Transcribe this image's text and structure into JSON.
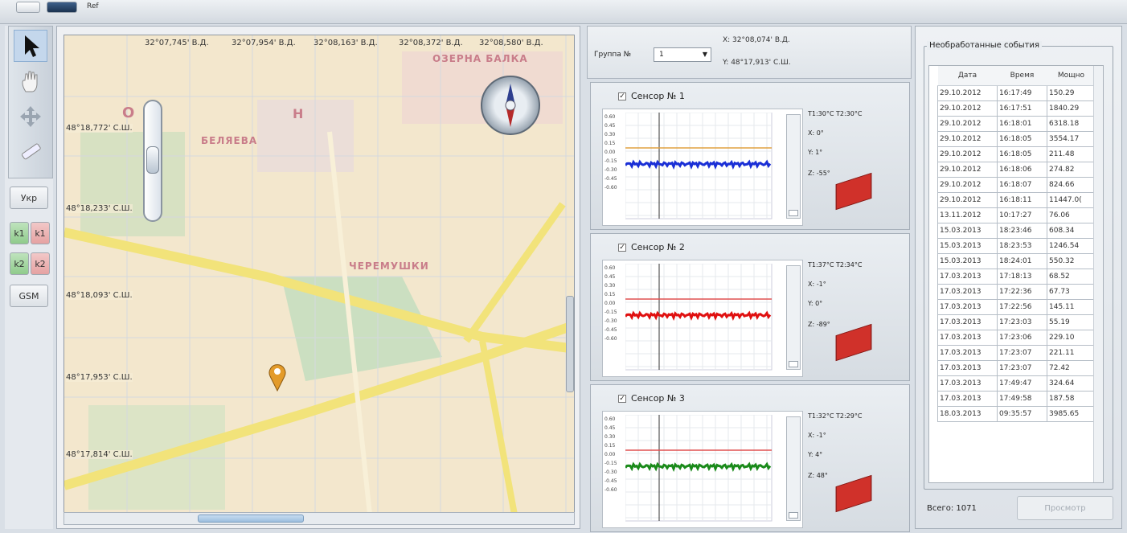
{
  "topbar": {
    "label": "Ref"
  },
  "toolbar": {
    "tools": [
      "pointer-icon",
      "hand-icon",
      "move-icon",
      "ruler-icon"
    ],
    "buttons": {
      "ukr": "Укр",
      "k1a": "k1",
      "k1b": "k1",
      "k2a": "k2",
      "k2b": "k2",
      "gsm": "GSM"
    }
  },
  "map": {
    "lon_labels": [
      "32°07,745' В.Д.",
      "32°07,954' В.Д.",
      "32°08,163' В.Д.",
      "32°08,372' В.Д.",
      "32°08,580' В.Д."
    ],
    "lat_labels": [
      "48°18,772' С.Ш.",
      "48°18,233' С.Ш.",
      "48°18,093' С.Ш.",
      "48°17,953' С.Ш.",
      "48°17,814' С.Ш."
    ],
    "districts": {
      "ozerna": "ОЗЕРНА БАЛКА",
      "o": "О",
      "n": "Н",
      "bilyaiva": "БЕЛЯЕВА",
      "cheremushki": "ЧЕРЕМУШКИ"
    }
  },
  "group": {
    "label": "Группа №",
    "value": "1",
    "x": "X:   32°08,074' В.Д.",
    "y": "Y:   48°17,913' С.Ш."
  },
  "sensors": [
    {
      "title": "Сенсор № 1",
      "temps": "T1:30°C  T2:30°C",
      "x": "X:  0°",
      "y": "Y:  1°",
      "z": "Z:  -55°",
      "color": "#1a2fd6",
      "ref_color": "#e0a040"
    },
    {
      "title": "Сенсор № 2",
      "temps": "T1:37°C  T2:34°C",
      "x": "X:  -1°",
      "y": "Y:  0°",
      "z": "Z:  -89°",
      "color": "#e01010",
      "ref_color": "#e05050"
    },
    {
      "title": "Сенсор № 3",
      "temps": "T1:32°C  T2:29°C",
      "x": "X:  -1°",
      "y": "Y:  4°",
      "z": "Z:  48°",
      "color": "#1a8a1a",
      "ref_color": "#e05050"
    }
  ],
  "events": {
    "legend": "Необработанные события",
    "columns": [
      "Дата",
      "Время",
      "Мощно"
    ],
    "rows": [
      [
        "29.10.2012",
        "16:17:49",
        "150.29"
      ],
      [
        "29.10.2012",
        "16:17:51",
        "1840.29"
      ],
      [
        "29.10.2012",
        "16:18:01",
        "6318.18"
      ],
      [
        "29.10.2012",
        "16:18:05",
        "3554.17"
      ],
      [
        "29.10.2012",
        "16:18:05",
        "211.48"
      ],
      [
        "29.10.2012",
        "16:18:06",
        "274.82"
      ],
      [
        "29.10.2012",
        "16:18:07",
        "824.66"
      ],
      [
        "29.10.2012",
        "16:18:11",
        "11447.0("
      ],
      [
        "13.11.2012",
        "10:17:27",
        "76.06"
      ],
      [
        "15.03.2013",
        "18:23:46",
        "608.34"
      ],
      [
        "15.03.2013",
        "18:23:53",
        "1246.54"
      ],
      [
        "15.03.2013",
        "18:24:01",
        "550.32"
      ],
      [
        "17.03.2013",
        "17:18:13",
        "68.52"
      ],
      [
        "17.03.2013",
        "17:22:36",
        "67.73"
      ],
      [
        "17.03.2013",
        "17:22:56",
        "145.11"
      ],
      [
        "17.03.2013",
        "17:23:03",
        "55.19"
      ],
      [
        "17.03.2013",
        "17:23:06",
        "229.10"
      ],
      [
        "17.03.2013",
        "17:23:07",
        "221.11"
      ],
      [
        "17.03.2013",
        "17:23:07",
        "72.42"
      ],
      [
        "17.03.2013",
        "17:49:47",
        "324.64"
      ],
      [
        "17.03.2013",
        "17:49:58",
        "187.58"
      ],
      [
        "18.03.2013",
        "09:35:57",
        "3985.65"
      ]
    ],
    "total": "Всего: 1071",
    "view_button": "Просмотр"
  }
}
